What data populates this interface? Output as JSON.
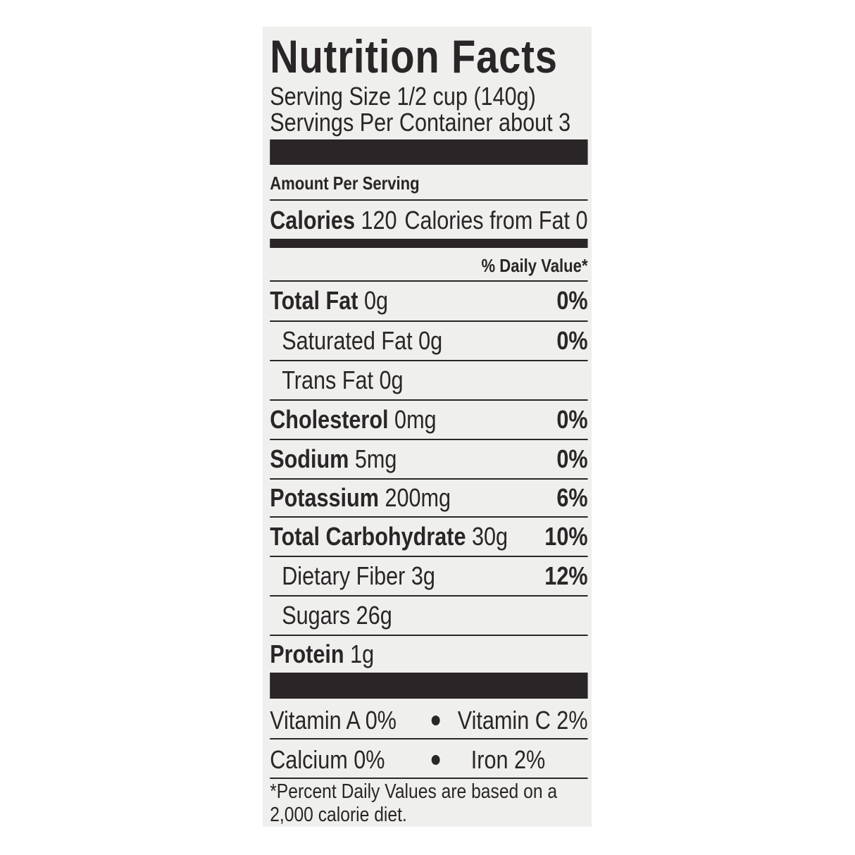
{
  "title": "Nutrition Facts",
  "serving_size": "Serving Size 1/2 cup (140g)",
  "servings_per_container": "Servings Per Container about 3",
  "amount_per_serving": "Amount Per Serving",
  "calories": {
    "label": "Calories",
    "value": "120",
    "from_fat": "Calories from Fat 0"
  },
  "daily_value_header": "% Daily Value*",
  "nutrients": [
    {
      "label": "Total Fat",
      "amount": "0g",
      "dv": "0%",
      "bold": true
    },
    {
      "label": "Saturated Fat",
      "amount": "0g",
      "dv": "0%",
      "bold": false
    },
    {
      "label": "Trans Fat",
      "amount": "0g",
      "dv": "",
      "bold": false
    },
    {
      "label": "Cholesterol",
      "amount": "0mg",
      "dv": "0%",
      "bold": true
    },
    {
      "label": "Sodium",
      "amount": "5mg",
      "dv": "0%",
      "bold": true
    },
    {
      "label": "Potassium",
      "amount": "200mg",
      "dv": "6%",
      "bold": true
    },
    {
      "label": "Total Carbohydrate",
      "amount": "30g",
      "dv": "10%",
      "bold": true
    },
    {
      "label": "Dietary Fiber",
      "amount": "3g",
      "dv": "12%",
      "bold": false
    },
    {
      "label": "Sugars",
      "amount": "26g",
      "dv": "",
      "bold": false
    },
    {
      "label": "Protein",
      "amount": "1g",
      "dv": "",
      "bold": true
    }
  ],
  "vitamins": [
    {
      "left": "Vitamin A 0%",
      "right": "Vitamin C 2%"
    },
    {
      "left": "Calcium 0%",
      "right": "Iron 2%"
    }
  ],
  "footnote": "*Percent Daily Values are based on a 2,000 calorie diet.",
  "colors": {
    "ink": "#2a2526",
    "label_background": "#efefed"
  }
}
